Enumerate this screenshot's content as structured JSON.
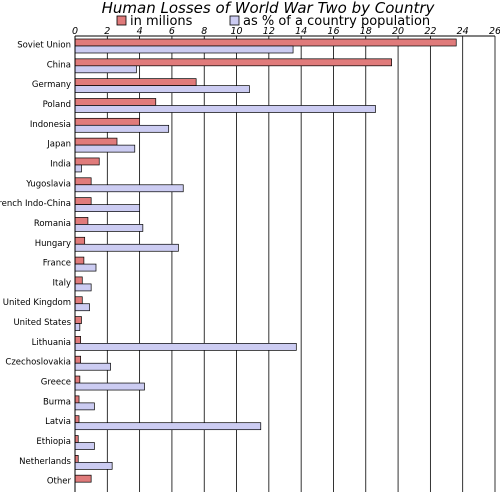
{
  "chart_data": {
    "type": "bar",
    "orientation": "horizontal",
    "title": "Human Losses of World War Two by Country",
    "xlim": [
      0,
      26
    ],
    "xticks": [
      "0",
      "2",
      "4",
      "6",
      "8",
      "10",
      "12",
      "14",
      "16",
      "18",
      "20",
      "22",
      "24",
      "26"
    ],
    "grid": true,
    "legend_position": "top",
    "categories": [
      "Soviet Union",
      "China",
      "Germany",
      "Poland",
      "Indonesia",
      "Japan",
      "India",
      "Yugoslavia",
      "French Indo-China",
      "Romania",
      "Hungary",
      "France",
      "Italy",
      "United Kingdom",
      "United States",
      "Lithuania",
      "Czechoslovakia",
      "Greece",
      "Burma",
      "Latvia",
      "Ethiopia",
      "Netherlands",
      "Other"
    ],
    "series": [
      {
        "name": "in milions",
        "color": "#e07b7b",
        "values": [
          23.6,
          19.6,
          7.5,
          5.0,
          4.0,
          2.6,
          1.5,
          1.0,
          1.0,
          0.8,
          0.6,
          0.55,
          0.45,
          0.45,
          0.4,
          0.35,
          0.35,
          0.3,
          0.25,
          0.25,
          0.2,
          0.2,
          1.0
        ]
      },
      {
        "name": "as % of a country population",
        "color": "#ccccf2",
        "values": [
          13.5,
          3.8,
          10.8,
          18.6,
          5.8,
          3.7,
          0.4,
          6.7,
          4.0,
          4.2,
          6.4,
          1.3,
          1.0,
          0.9,
          0.3,
          13.7,
          2.2,
          4.3,
          1.2,
          11.5,
          1.2,
          2.3,
          0.0
        ]
      }
    ]
  }
}
